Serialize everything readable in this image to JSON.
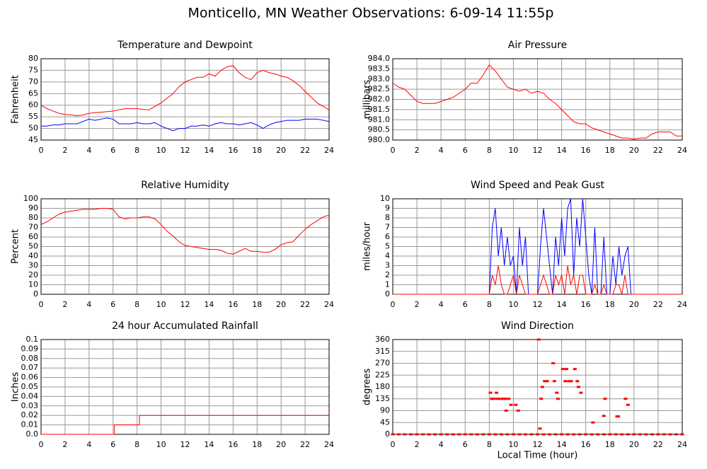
{
  "title": "Monticello, MN Weather Observations: 6-09-14 11:55p",
  "chart_data": [
    {
      "type": "line",
      "title": "Temperature and Dewpoint",
      "ylabel": "Fahrenheit",
      "grid": true,
      "xlim": [
        0,
        24
      ],
      "xticks": [
        0,
        2,
        4,
        6,
        8,
        10,
        12,
        14,
        16,
        18,
        20,
        22,
        24
      ],
      "ylim": [
        45,
        80
      ],
      "yticks": [
        45,
        50,
        55,
        60,
        65,
        70,
        75,
        80
      ],
      "x": [
        0,
        0.5,
        1,
        1.5,
        2,
        2.5,
        3,
        3.5,
        4,
        4.5,
        5,
        5.5,
        6,
        6.5,
        7,
        7.5,
        8,
        8.5,
        9,
        9.5,
        10,
        10.5,
        11,
        11.5,
        12,
        12.5,
        13,
        13.5,
        14,
        14.5,
        15,
        15.5,
        16,
        16.5,
        17,
        17.5,
        18,
        18.5,
        19,
        19.5,
        20,
        20.5,
        21,
        21.5,
        22,
        22.5,
        23,
        23.5,
        24
      ],
      "series": [
        {
          "color": "#ff0000",
          "values": [
            60,
            58.5,
            57.5,
            56.5,
            56,
            55.8,
            55.5,
            55.8,
            56.5,
            56.8,
            57,
            57.2,
            57.5,
            58,
            58.5,
            58.5,
            58.5,
            58.2,
            58,
            59.5,
            61,
            63,
            65,
            68,
            70,
            71,
            72,
            72,
            73.5,
            72.5,
            75,
            76.5,
            77,
            74,
            72,
            71,
            74,
            75,
            74,
            73.5,
            72.5,
            72,
            70.5,
            68.5,
            66,
            63.5,
            61,
            59.5,
            58
          ]
        },
        {
          "color": "#0000ff",
          "values": [
            51,
            51,
            51.5,
            51.5,
            52,
            52,
            52,
            53,
            54,
            53.5,
            54,
            54.5,
            54,
            52,
            52,
            52,
            52.5,
            52,
            52,
            52.5,
            51,
            50,
            49,
            50,
            50,
            51,
            51,
            51.5,
            51,
            52,
            52.5,
            52,
            52,
            51.5,
            52,
            52.5,
            51.5,
            50,
            51.5,
            52.5,
            53,
            53.5,
            53.5,
            53.5,
            54,
            54,
            54,
            53.5,
            53
          ]
        }
      ]
    },
    {
      "type": "line",
      "title": "Air Pressure",
      "ylabel": "millibars",
      "grid": true,
      "xlim": [
        0,
        24
      ],
      "xticks": [
        0,
        2,
        4,
        6,
        8,
        10,
        12,
        14,
        16,
        18,
        20,
        22,
        24
      ],
      "ylim": [
        980,
        984
      ],
      "yticks": [
        {
          "value": 980,
          "label": "980.0"
        },
        980.5,
        {
          "value": 981,
          "label": "981.0"
        },
        981.5,
        {
          "value": 982,
          "label": "982.0"
        },
        982.5,
        {
          "value": 983,
          "label": "983.0"
        },
        983.5,
        {
          "value": 984,
          "label": "984.0"
        }
      ],
      "x": [
        0,
        0.5,
        1,
        1.5,
        2,
        2.5,
        3,
        3.5,
        4,
        4.5,
        5,
        5.5,
        6,
        6.5,
        7,
        7.5,
        8,
        8.5,
        9,
        9.5,
        10,
        10.5,
        11,
        11.5,
        12,
        12.5,
        13,
        13.5,
        14,
        14.5,
        15,
        15.5,
        16,
        16.5,
        17,
        17.5,
        18,
        18.5,
        19,
        19.5,
        20,
        20.5,
        21,
        21.5,
        22,
        22.5,
        23,
        23.5,
        24
      ],
      "series": [
        {
          "color": "#ff0000",
          "values": [
            982.8,
            982.6,
            982.5,
            982.2,
            981.9,
            981.8,
            981.8,
            981.8,
            981.9,
            982.0,
            982.1,
            982.3,
            982.5,
            982.8,
            982.8,
            983.2,
            983.7,
            983.4,
            983.0,
            982.6,
            982.5,
            982.4,
            982.5,
            982.3,
            982.4,
            982.3,
            982.0,
            981.8,
            981.5,
            981.2,
            980.9,
            980.8,
            980.8,
            980.6,
            980.5,
            980.4,
            980.3,
            980.2,
            980.1,
            980.1,
            980.05,
            980.1,
            980.1,
            980.3,
            980.4,
            980.4,
            980.4,
            980.2,
            980.2
          ]
        }
      ]
    },
    {
      "type": "line",
      "title": "Relative Humidity",
      "ylabel": "Percent",
      "grid": true,
      "xlim": [
        0,
        24
      ],
      "xticks": [
        0,
        2,
        4,
        6,
        8,
        10,
        12,
        14,
        16,
        18,
        20,
        22,
        24
      ],
      "ylim": [
        0,
        100
      ],
      "yticks": [
        0,
        10,
        20,
        30,
        40,
        50,
        60,
        70,
        80,
        90,
        100
      ],
      "x": [
        0,
        0.5,
        1,
        1.5,
        2,
        2.5,
        3,
        3.5,
        4,
        4.5,
        5,
        5.5,
        6,
        6.5,
        7,
        7.5,
        8,
        8.5,
        9,
        9.5,
        10,
        10.5,
        11,
        11.5,
        12,
        12.5,
        13,
        13.5,
        14,
        14.5,
        15,
        15.5,
        16,
        16.5,
        17,
        17.5,
        18,
        18.5,
        19,
        19.5,
        20,
        20.5,
        21,
        21.5,
        22,
        22.5,
        23,
        23.5,
        24
      ],
      "series": [
        {
          "color": "#ff0000",
          "values": [
            73,
            76,
            80,
            84,
            86,
            87,
            88,
            89,
            89,
            89,
            90,
            90,
            89,
            81,
            79,
            80,
            80,
            81,
            81,
            79,
            73,
            66,
            61,
            55,
            51,
            50,
            49,
            48,
            47,
            47,
            46,
            43,
            42,
            45,
            48,
            45,
            45,
            44,
            44,
            47,
            52,
            54,
            55,
            62,
            68,
            73,
            77,
            81,
            83
          ]
        }
      ]
    },
    {
      "type": "line",
      "title": "Wind Speed and Peak Gust",
      "ylabel": "miles/hour",
      "grid": true,
      "xlim": [
        0,
        24
      ],
      "xticks": [
        0,
        2,
        4,
        6,
        8,
        10,
        12,
        14,
        16,
        18,
        20,
        22,
        24
      ],
      "ylim": [
        0,
        10
      ],
      "yticks": [
        0,
        1,
        2,
        3,
        4,
        5,
        6,
        7,
        8,
        9,
        10
      ],
      "x": [
        0,
        8,
        8.25,
        8.5,
        8.75,
        9,
        9.25,
        9.5,
        9.75,
        10,
        10.25,
        10.5,
        10.75,
        11,
        11.25,
        11.5,
        11.75,
        12,
        12.25,
        12.5,
        12.75,
        13,
        13.25,
        13.5,
        13.75,
        14,
        14.25,
        14.5,
        14.75,
        15,
        15.25,
        15.5,
        15.75,
        16,
        16.25,
        16.5,
        16.75,
        17,
        17.25,
        17.5,
        17.75,
        18,
        18.25,
        18.5,
        18.75,
        19,
        19.25,
        19.5,
        19.75,
        20,
        24
      ],
      "series": [
        {
          "color": "#0000ff",
          "values": [
            0,
            0,
            7,
            9,
            4,
            7,
            3,
            6,
            3,
            4,
            0,
            7,
            3,
            6,
            0,
            0,
            0,
            0,
            5,
            9,
            6,
            3,
            0,
            6,
            3,
            8,
            4,
            9,
            10,
            2,
            8,
            5,
            10,
            6,
            2,
            0,
            7,
            0,
            0,
            6,
            0,
            0,
            4,
            1,
            5,
            2,
            4,
            5,
            0,
            0,
            0
          ]
        },
        {
          "color": "#ff0000",
          "values": [
            0,
            0,
            2,
            1,
            3,
            1,
            0,
            0,
            1,
            2,
            0,
            2,
            1,
            0,
            0,
            0,
            0,
            0,
            1,
            2,
            1,
            0,
            0,
            2,
            1,
            2,
            0,
            3,
            1,
            2,
            0,
            2,
            2,
            0,
            0,
            0,
            1,
            0,
            0,
            1,
            0,
            0,
            0,
            1,
            1,
            0,
            2,
            0,
            0,
            0,
            0
          ]
        }
      ]
    },
    {
      "type": "line",
      "step": true,
      "title": "24 hour Accumulated Rainfall",
      "ylabel": "Inches",
      "grid": true,
      "xlim": [
        0,
        24
      ],
      "xticks": [
        0,
        2,
        4,
        6,
        8,
        10,
        12,
        14,
        16,
        18,
        20,
        22,
        24
      ],
      "ylim": [
        0,
        0.1
      ],
      "yticks": [
        {
          "value": 0,
          "label": "0.0"
        },
        0.01,
        0.02,
        0.03,
        0.04,
        0.05,
        0.06,
        0.07,
        0.08,
        0.09,
        0.1
      ],
      "x": [
        0,
        6.1,
        8.2,
        24
      ],
      "series": [
        {
          "color": "#ff0000",
          "values": [
            0,
            0.01,
            0.02,
            0.02
          ]
        }
      ]
    },
    {
      "type": "scatter",
      "title": "Wind Direction",
      "ylabel": "degrees",
      "xlabel": "Local Time (hour)",
      "grid": true,
      "xlim": [
        0,
        24
      ],
      "xticks": [
        0,
        2,
        4,
        6,
        8,
        10,
        12,
        14,
        16,
        18,
        20,
        22,
        24
      ],
      "ylim": [
        0,
        360
      ],
      "yticks": [
        0,
        45,
        90,
        135,
        180,
        225,
        270,
        315,
        360
      ],
      "series": [
        {
          "color": "#ff0000",
          "x": [
            0,
            0.5,
            1,
            1.5,
            2,
            2.5,
            3,
            3.5,
            4,
            4.5,
            5,
            5.5,
            6,
            6.5,
            7,
            7.5,
            8,
            8.5,
            9,
            9.5,
            10,
            10.5,
            11,
            11.5,
            12,
            12.5,
            13,
            13.5,
            14,
            14.5,
            15,
            15.5,
            16,
            16.5,
            17,
            17.5,
            18,
            18.5,
            19,
            19.5,
            20,
            20.5,
            21,
            21.5,
            22,
            22.5,
            23,
            23.5,
            24,
            8.1,
            8.2,
            8.3,
            8.4,
            8.6,
            8.7,
            8.8,
            9.1,
            9.2,
            9.3,
            9.4,
            9.6,
            9.8,
            10.2,
            10.4,
            12.1,
            12.2,
            12.3,
            12.4,
            12.6,
            12.8,
            13.3,
            13.4,
            13.6,
            13.7,
            14.1,
            14.3,
            14.4,
            14.6,
            14.8,
            15.1,
            15.3,
            15.4,
            15.6,
            16.6,
            17.6,
            17.5,
            18.6,
            18.7,
            19.3,
            19.5
          ],
          "values": [
            0,
            0,
            0,
            0,
            0,
            0,
            0,
            0,
            0,
            0,
            0,
            0,
            0,
            0,
            0,
            0,
            0,
            0,
            0,
            0,
            0,
            0,
            0,
            0,
            0,
            0,
            0,
            0,
            0,
            0,
            0,
            0,
            0,
            0,
            0,
            0,
            0,
            0,
            0,
            0,
            0,
            0,
            0,
            0,
            0,
            0,
            0,
            0,
            0,
            158,
            135,
            135,
            135,
            158,
            135,
            135,
            135,
            135,
            135,
            90,
            135,
            112,
            112,
            90,
            360,
            22,
            135,
            180,
            202,
            202,
            270,
            202,
            158,
            135,
            248,
            202,
            248,
            202,
            202,
            248,
            202,
            180,
            158,
            45,
            135,
            70,
            68,
            68,
            135,
            112
          ]
        }
      ]
    }
  ]
}
